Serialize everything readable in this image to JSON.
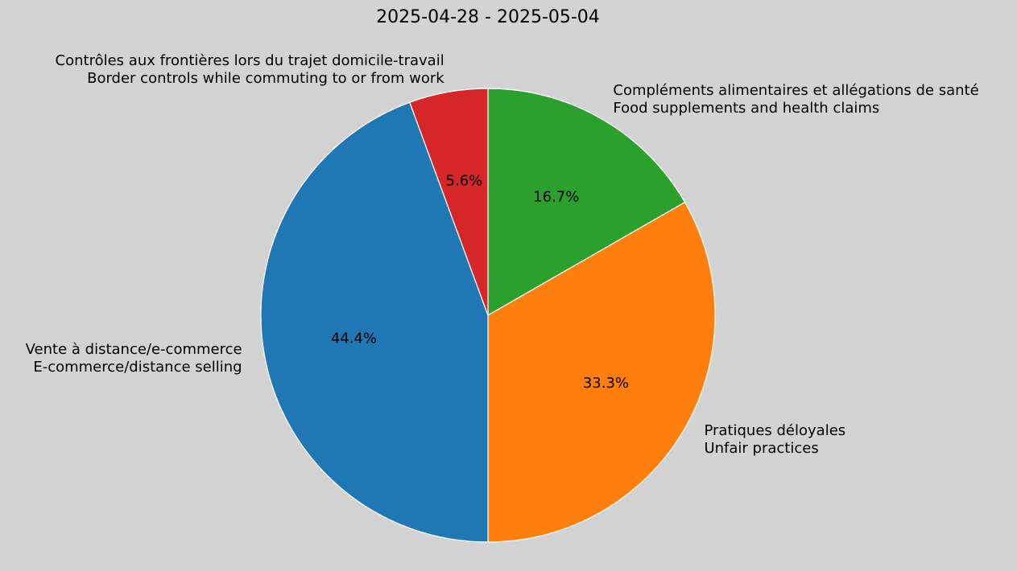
{
  "chart_data": {
    "type": "pie",
    "title": "2025-04-28 - 2025-05-04",
    "categories": [
      "Compléments alimentaires et allégations de santé\nFood supplements and health claims",
      "Pratiques déloyales\nUnfair practices",
      "Vente à distance/e-commerce\nE-commerce/distance selling",
      "Contrôles aux frontières lors du trajet domicile-travail\nBorder controls while commuting to or from work"
    ],
    "values": [
      16.7,
      33.3,
      44.4,
      5.6
    ],
    "value_labels": [
      "16.7%",
      "33.3%",
      "44.4%",
      "5.6%"
    ],
    "colors": [
      "#2ca02c",
      "#ff7f0e",
      "#1f77b4",
      "#d62728"
    ]
  }
}
